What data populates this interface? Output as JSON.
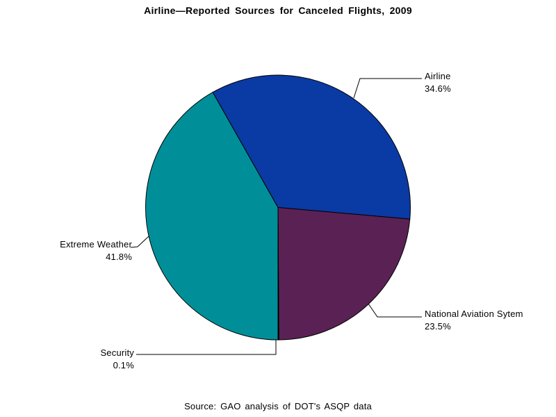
{
  "chart_data": {
    "type": "pie",
    "title": "Airline—Reported Sources for Canceled Flights, 2009",
    "source_note": "Source: GAO analysis of DOT's ASQP data",
    "direction": "clockwise",
    "start_compass_deg": 180,
    "outline_color": "#000000",
    "background": "#ffffff",
    "slices": [
      {
        "label": "Extreme Weather",
        "value_pct": 41.8,
        "pct_label": "41.8%",
        "color": "#008f99"
      },
      {
        "label": "Airline",
        "value_pct": 34.6,
        "pct_label": "34.6%",
        "color": "#0a3aa3"
      },
      {
        "label": "National Aviation Sytem",
        "value_pct": 23.5,
        "pct_label": "23.5%",
        "color": "#5a2154"
      },
      {
        "label": "Security",
        "value_pct": 0.1,
        "pct_label": "0.1%",
        "color": "#000000"
      }
    ]
  }
}
